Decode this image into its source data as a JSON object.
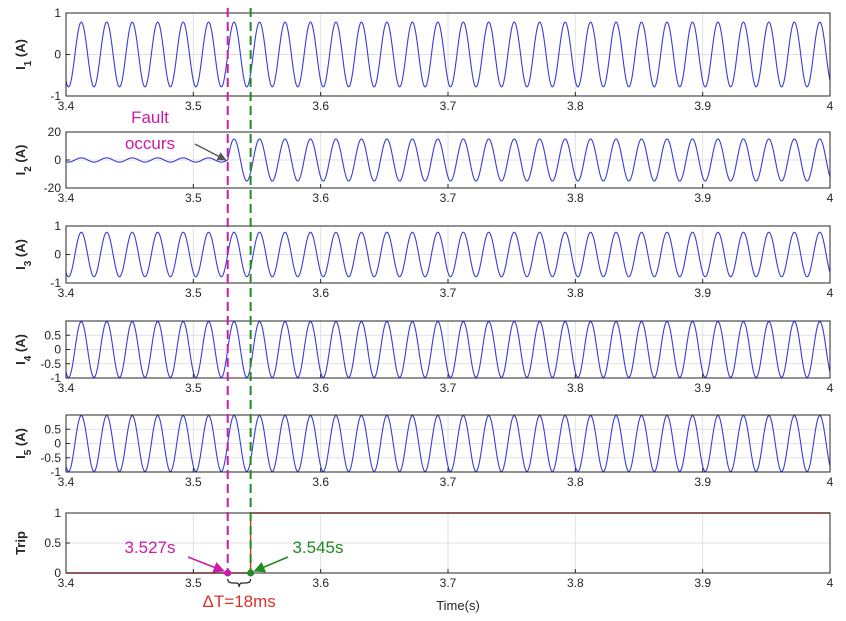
{
  "chart_data": {
    "type": "line",
    "xlabel": "Time(s)",
    "xlim": [
      3.4,
      4.0
    ],
    "xticks": [
      "3.4",
      "3.5",
      "3.6",
      "3.7",
      "3.8",
      "3.9",
      "4"
    ],
    "grid": true,
    "fault_time": 3.527,
    "trip_time": 3.545,
    "frequency_hz": 50,
    "colors": {
      "signal": "#3b3bdc",
      "trip": "#e0302a",
      "fault_marker": "#cc1aa9",
      "trip_marker": "#1e8c1e",
      "grid": "#e1e1e1"
    },
    "panels": [
      {
        "ylabel": "I",
        "sub": "1",
        "unit": " (A)",
        "ylim": [
          -1,
          1
        ],
        "yticks": [
          "-1",
          "0",
          "1"
        ],
        "series": [
          {
            "kind": "sine",
            "amp_before": 0.78,
            "amp_after": 0.78
          }
        ]
      },
      {
        "ylabel": "I",
        "sub": "2",
        "unit": " (A)",
        "ylim": [
          -20,
          20
        ],
        "yticks": [
          "-20",
          "0",
          "20"
        ],
        "series": [
          {
            "kind": "sine",
            "amp_before": 1.5,
            "amp_after": 15
          }
        ]
      },
      {
        "ylabel": "I",
        "sub": "3",
        "unit": " (A)",
        "ylim": [
          -1,
          1
        ],
        "yticks": [
          "-1",
          "0",
          "1"
        ],
        "series": [
          {
            "kind": "sine",
            "amp_before": 0.78,
            "amp_after": 0.78
          }
        ]
      },
      {
        "ylabel": "I",
        "sub": "4",
        "unit": " (A)",
        "ylim": [
          -1,
          1
        ],
        "yticks": [
          "-1",
          "-0.5",
          "0",
          "0.5"
        ],
        "series": [
          {
            "kind": "sine",
            "amp_before": 0.98,
            "amp_after": 0.98
          }
        ]
      },
      {
        "ylabel": "I",
        "sub": "5",
        "unit": " (A)",
        "ylim": [
          -1,
          1
        ],
        "yticks": [
          "-1",
          "-0.5",
          "0",
          "0.5"
        ],
        "series": [
          {
            "kind": "sine",
            "amp_before": 0.98,
            "amp_after": 0.98
          }
        ]
      },
      {
        "ylabel": "Trip",
        "sub": "",
        "unit": "",
        "ylim": [
          0,
          1
        ],
        "yticks": [
          "0",
          "0.5",
          "1"
        ],
        "series": [
          {
            "kind": "step",
            "before": 0,
            "after": 1
          }
        ]
      }
    ],
    "annotations": {
      "fault_label_line1": "Fault",
      "fault_label_line2": "occurs",
      "fault_time_label": "3.527s",
      "trip_time_label": "3.545s",
      "delta_label": "ΔT=18ms"
    }
  }
}
